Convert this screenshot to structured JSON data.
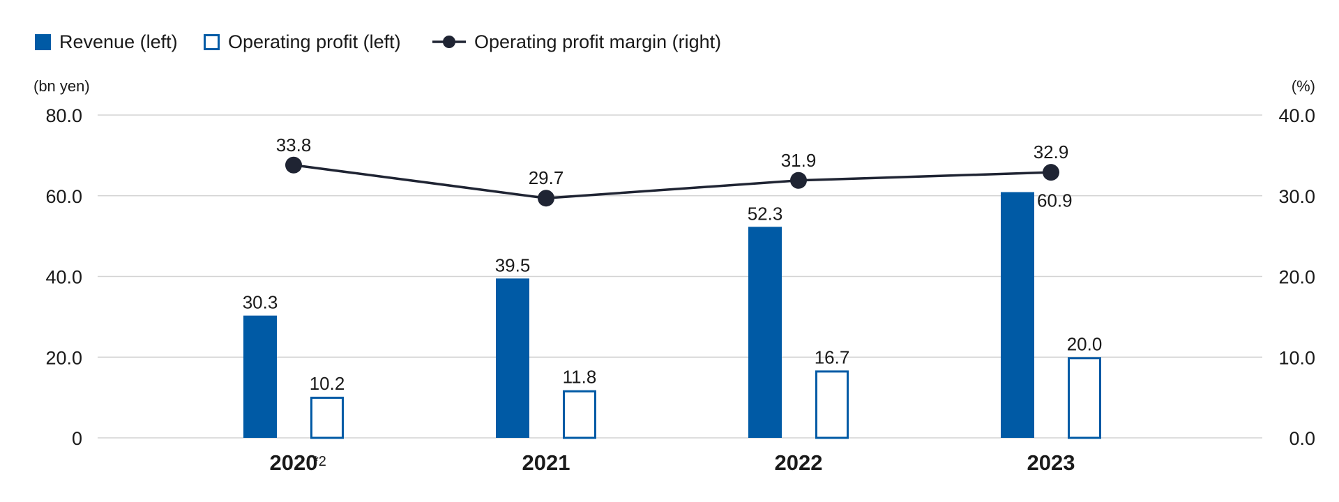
{
  "chart_data": {
    "type": "bar",
    "title": "",
    "categories": [
      "2020",
      "2021",
      "2022",
      "2023"
    ],
    "category_notes": [
      "*2",
      "",
      "",
      ""
    ],
    "left_axis": {
      "unit_label": "(bn yen)",
      "range": [
        0,
        80
      ],
      "ticks": [
        0,
        20,
        40,
        60,
        80
      ],
      "tick_labels": [
        "0",
        "20.0",
        "40.0",
        "60.0",
        "80.0"
      ]
    },
    "right_axis": {
      "unit_label": "(%)",
      "range": [
        0,
        40
      ],
      "ticks": [
        0,
        10,
        20,
        30,
        40
      ],
      "tick_labels": [
        "0.0",
        "10.0",
        "20.0",
        "30.0",
        "40.0"
      ]
    },
    "series": [
      {
        "name": "Revenue (left)",
        "kind": "bar",
        "style": "filled",
        "axis": "left",
        "values": [
          30.3,
          39.5,
          52.3,
          60.9
        ],
        "value_labels": [
          "30.3",
          "39.5",
          "52.3",
          "60.9"
        ]
      },
      {
        "name": "Operating profit (left)",
        "kind": "bar",
        "style": "outline",
        "axis": "left",
        "values": [
          10.2,
          11.8,
          16.7,
          20.0
        ],
        "value_labels": [
          "10.2",
          "11.8",
          "16.7",
          "20.0"
        ]
      },
      {
        "name": "Operating profit margin (right)",
        "kind": "line",
        "axis": "right",
        "values": [
          33.8,
          29.7,
          31.9,
          32.9
        ],
        "value_labels": [
          "33.8",
          "29.7",
          "31.9",
          "32.9"
        ]
      }
    ],
    "grid": true,
    "legend_position": "top-left"
  },
  "colors": {
    "bar": "#005aa5",
    "line": "#1f2433",
    "grid": "#d4d4d4",
    "text": "#1a1a1a"
  }
}
